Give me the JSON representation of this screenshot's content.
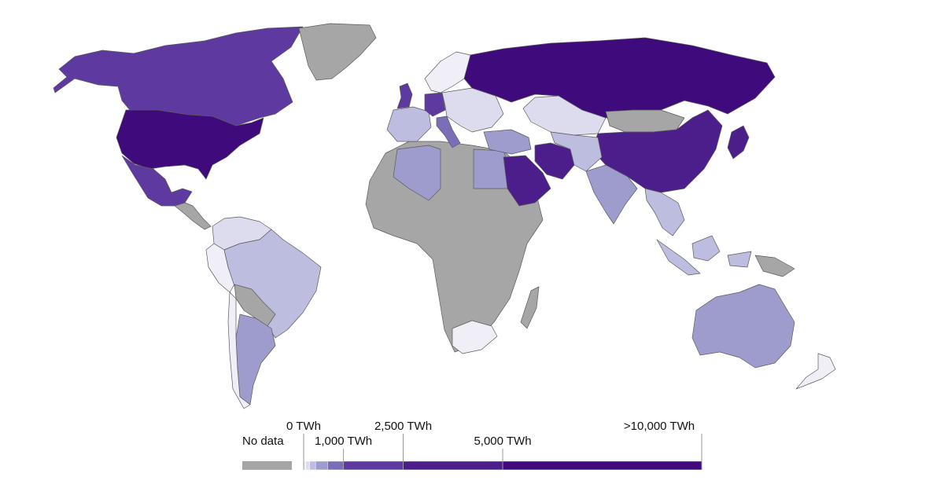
{
  "map": {
    "colors": {
      "no_data": "#a6a6a6",
      "c1": "#f0eff7",
      "c2": "#dcdcee",
      "c3": "#bdbde0",
      "c4": "#9e9ccc",
      "c5": "#7b6db8",
      "c6": "#5d39a0",
      "c7": "#4c1e8c",
      "c8": "#3f0a7c",
      "outline": "#5a5a5a",
      "ocean": "#ffffff"
    },
    "regions": {
      "north_america": "c6",
      "usa": "c8",
      "mexico": "c6",
      "central_america": "no_data",
      "greenland": "no_data",
      "south_america_north": "c2",
      "brazil": "c3",
      "peru_ecuador": "c1",
      "bolivia_paraguay": "no_data",
      "argentina": "c4",
      "chile": "c1",
      "africa": "no_data",
      "algeria": "c4",
      "egypt": "c4",
      "south_africa": "c1",
      "madagascar": "no_data",
      "western_europe": "c3",
      "uk": "c6",
      "germany": "c6",
      "italy": "c5",
      "scandinavia": "c1",
      "eastern_europe": "c2",
      "russia": "c8",
      "kazakhstan": "c2",
      "mongolia": "no_data",
      "china": "c7",
      "japan": "c7",
      "iran": "c7",
      "saudi_arabia": "c7",
      "middle_east_small": "c4",
      "central_asia": "c3",
      "india": "c4",
      "southeast_asia": "c3",
      "indonesia": "c3",
      "australia": "c4",
      "new_zealand": "c1",
      "png": "no_data"
    }
  },
  "legend": {
    "no_data_label": "No data",
    "tick_labels": [
      "0 TWh",
      "1,000 TWh",
      "2,500 TWh",
      "5,000 TWh",
      ">10,000 TWh"
    ],
    "tick_values": [
      0,
      1000,
      2500,
      5000,
      10000
    ]
  }
}
